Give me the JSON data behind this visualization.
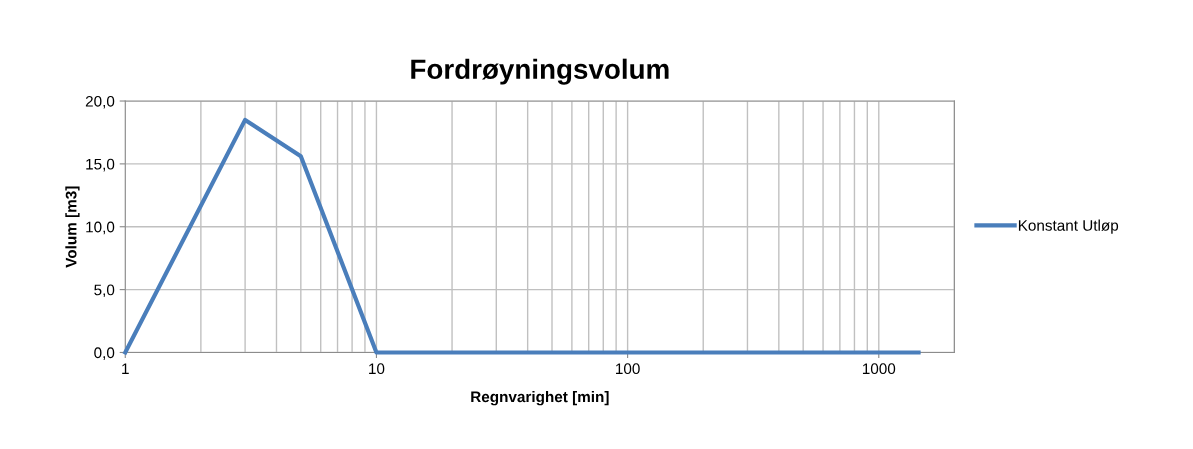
{
  "chart_data": {
    "type": "line",
    "title": "Fordrøyningsvolum",
    "xlabel": "Regnvarighet [min]",
    "ylabel": "Volum [m3]",
    "x": [
      1,
      3,
      5,
      10,
      1440
    ],
    "series": [
      {
        "name": "Konstant Utløp",
        "color": "#4a7ebb",
        "values": [
          0.0,
          18.5,
          15.6,
          0.0,
          0.0
        ]
      }
    ],
    "log": "x",
    "xlim": [
      1,
      2000
    ],
    "xticks": [
      1,
      10,
      100,
      1000
    ],
    "ylim": [
      0,
      20
    ],
    "yticks": [
      {
        "value": 0,
        "label": "0,0"
      },
      {
        "value": 5,
        "label": "5,0"
      },
      {
        "value": 10,
        "label": "10,0"
      },
      {
        "value": 15,
        "label": "15,0"
      },
      {
        "value": 20,
        "label": "20,0"
      }
    ],
    "grid": true,
    "legend": "right",
    "marker": "none",
    "line_style": "solid"
  }
}
